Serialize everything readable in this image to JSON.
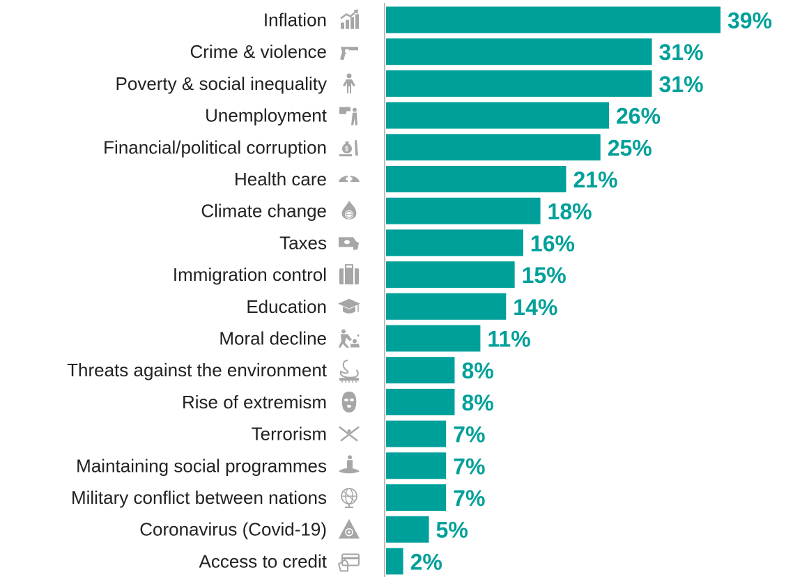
{
  "colors": {
    "bar": "#00A09A",
    "value_text": "#00A09A",
    "label_text": "#222222",
    "icon": "#A6A6A6",
    "axis": "#A6A6A6"
  },
  "chart_data": {
    "type": "bar",
    "orientation": "horizontal",
    "grid": false,
    "legend": "none",
    "xlim": [
      0,
      39
    ],
    "categories": [
      "Inflation",
      "Crime & violence",
      "Poverty & social inequality",
      "Unemployment",
      "Financial/political corruption",
      "Health care",
      "Climate change",
      "Taxes",
      "Immigration control",
      "Education",
      "Moral decline",
      "Threats against the environment",
      "Rise of extremism",
      "Terrorism",
      "Maintaining social programmes",
      "Military conflict between nations",
      "Coronavirus (Covid-19)",
      "Access to credit"
    ],
    "values": [
      39,
      31,
      31,
      26,
      25,
      21,
      18,
      16,
      15,
      14,
      11,
      8,
      8,
      7,
      7,
      7,
      5,
      2
    ],
    "value_labels": [
      "39%",
      "31%",
      "31%",
      "26%",
      "25%",
      "21%",
      "18%",
      "16%",
      "15%",
      "14%",
      "11%",
      "8%",
      "8%",
      "7%",
      "7%",
      "7%",
      "5%",
      "2%"
    ],
    "icons": [
      "chart-growth-icon",
      "gun-icon",
      "person-icon",
      "pointing-hand-icon",
      "money-bag-icon",
      "nurse-cap-icon",
      "burning-globe-icon",
      "money-hand-icon",
      "suitcase-icon",
      "graduation-cap-icon",
      "fighting-people-icon",
      "swan-icon",
      "balaclava-icon",
      "crossed-rifles-icon",
      "person-island-icon",
      "globe-icon",
      "biohazard-icon",
      "credit-card-icon"
    ]
  }
}
